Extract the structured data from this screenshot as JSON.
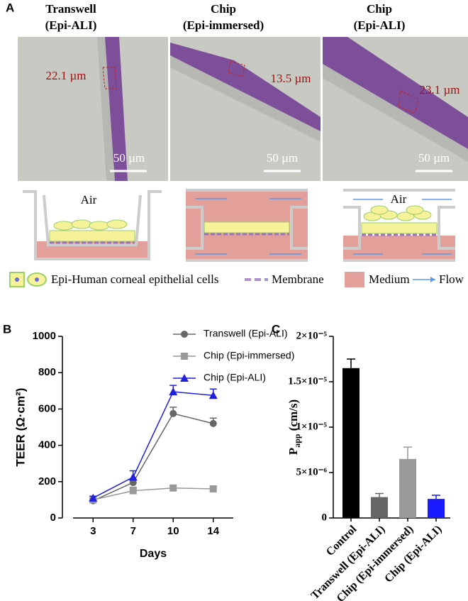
{
  "panel_a": {
    "label": "A",
    "columns": [
      {
        "title": "Transwell",
        "subtitle": "(Epi-ALI)",
        "thickness": "22.1 µm",
        "scale": "50 µm",
        "air": "Air"
      },
      {
        "title": "Chip",
        "subtitle": "(Epi-immersed)",
        "thickness": "13.5 µm",
        "scale": "50 µm"
      },
      {
        "title": "Chip",
        "subtitle": "(Epi-ALI)",
        "thickness": "23.1 µm",
        "scale": "50 µm",
        "air": "Air"
      }
    ],
    "legend": [
      "Epi-Human corneal epithelial cells",
      "Membrane",
      "Medium",
      "Flow"
    ]
  },
  "chart_data": [
    {
      "type": "line",
      "panel_label": "B",
      "xlabel": "Days",
      "ylabel": "TEER (Ω·cm²)",
      "categories": [
        "3",
        "7",
        "10",
        "14"
      ],
      "series": [
        {
          "name": "Transwell (Epi-ALI)",
          "color": "#666666",
          "marker": "circle",
          "values": [
            95,
            195,
            575,
            520
          ],
          "errors": [
            15,
            15,
            35,
            30
          ]
        },
        {
          "name": "Chip (Epi-immersed)",
          "color": "#999999",
          "marker": "square",
          "values": [
            100,
            150,
            165,
            160
          ],
          "errors": [
            10,
            20,
            15,
            15
          ]
        },
        {
          "name": "Chip (Epi-ALI)",
          "color": "#2020e0",
          "marker": "triangle",
          "values": [
            110,
            225,
            695,
            675
          ],
          "errors": [
            10,
            35,
            35,
            35
          ]
        }
      ],
      "ylim": [
        0,
        1000
      ],
      "yticks": [
        0,
        200,
        400,
        600,
        800,
        1000
      ]
    },
    {
      "type": "bar",
      "panel_label": "C",
      "ylabel": {
        "main": "P",
        "sub": "app",
        "unit": " (cm/s)"
      },
      "categories": [
        "Control",
        "Transwell (Epi-ALI)",
        "Chip (Epi-immersed)",
        "Chip (Epi-ALI)"
      ],
      "values": [
        1.65e-05,
        2.3e-06,
        6.5e-06,
        2.1e-06
      ],
      "errors": [
        1e-06,
        4e-07,
        1.3e-06,
        4e-07
      ],
      "colors": [
        "#000000",
        "#666666",
        "#999999",
        "#1a1aff"
      ],
      "ylim": [
        0,
        2e-05
      ],
      "yticks": [
        0,
        {
          "value": 5e-06,
          "label": "5×10⁻⁶"
        },
        {
          "value": 1e-05,
          "label": "1×10⁻⁵"
        },
        {
          "value": 1.5e-05,
          "label": "1.5×10⁻⁵"
        },
        {
          "value": 2e-05,
          "label": "2×10⁻⁵"
        }
      ]
    }
  ]
}
